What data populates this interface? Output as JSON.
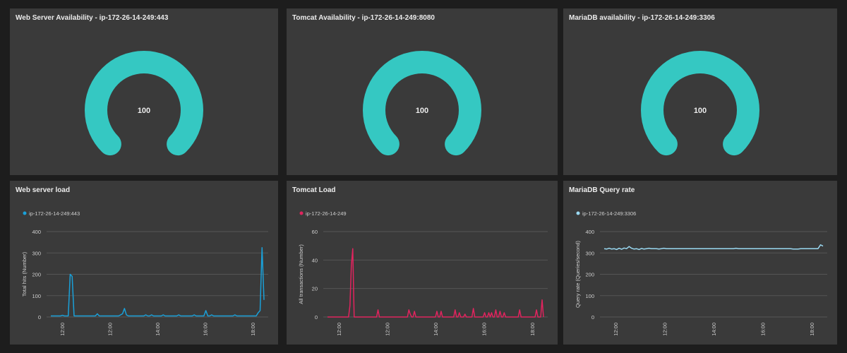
{
  "panels": [
    {
      "title": "Web Server Availability - ip-172-26-14-249:443",
      "value": "100",
      "color": "#35c8c2"
    },
    {
      "title": "Tomcat Availability - ip-172-26-14-249:8080",
      "value": "100",
      "color": "#35c8c2"
    },
    {
      "title": "MariaDB availability - ip-172-26-14-249:3306",
      "value": "100",
      "color": "#35c8c2"
    },
    {
      "title": "Web server load"
    },
    {
      "title": "Tomcat Load"
    },
    {
      "title": "MariaDB Query rate"
    }
  ],
  "chart_data": [
    {
      "type": "gauge",
      "title": "Web Server Availability - ip-172-26-14-249:443",
      "value": 100,
      "range": [
        0,
        100
      ],
      "color": "#35c8c2"
    },
    {
      "type": "gauge",
      "title": "Tomcat Availability - ip-172-26-14-249:8080",
      "value": 100,
      "range": [
        0,
        100
      ],
      "color": "#35c8c2"
    },
    {
      "type": "gauge",
      "title": "MariaDB availability - ip-172-26-14-249:3306",
      "value": 100,
      "range": [
        0,
        100
      ],
      "color": "#35c8c2"
    },
    {
      "type": "line",
      "title": "Web server load",
      "ylabel": "Total hits (Number)",
      "ylim": [
        0,
        400
      ],
      "yticks": [
        "0",
        "100",
        "200",
        "300",
        "400"
      ],
      "xticks": [
        "12:00",
        "12:00",
        "14:00",
        "16:00",
        "18:00"
      ],
      "legend_position": "top-left",
      "grid": true,
      "series": [
        {
          "name": "ip-172-26-14-249:443",
          "color": "#1aa0d8",
          "values": [
            5,
            5,
            5,
            5,
            5,
            5,
            8,
            5,
            5,
            5,
            200,
            190,
            5,
            5,
            5,
            5,
            5,
            5,
            5,
            5,
            5,
            5,
            5,
            5,
            15,
            5,
            5,
            5,
            5,
            5,
            5,
            5,
            5,
            5,
            5,
            5,
            10,
            15,
            40,
            10,
            5,
            5,
            5,
            5,
            5,
            5,
            5,
            5,
            5,
            10,
            5,
            5,
            10,
            5,
            5,
            5,
            5,
            5,
            10,
            5,
            5,
            5,
            5,
            5,
            5,
            5,
            10,
            5,
            5,
            5,
            5,
            5,
            5,
            5,
            10,
            5,
            5,
            5,
            5,
            5,
            30,
            5,
            5,
            10,
            5,
            5,
            5,
            5,
            5,
            5,
            5,
            5,
            5,
            5,
            5,
            10,
            5,
            5,
            5,
            5,
            5,
            5,
            5,
            5,
            5,
            5,
            5,
            20,
            30,
            325,
            80
          ]
        }
      ]
    },
    {
      "type": "line",
      "title": "Tomcat Load",
      "ylabel": "All transactions (Number)",
      "ylim": [
        0,
        60
      ],
      "yticks": [
        "0",
        "20",
        "40",
        "60"
      ],
      "xticks": [
        "12:00",
        "12:00",
        "14:00",
        "16:00",
        "18:00"
      ],
      "legend_position": "top-left",
      "grid": true,
      "series": [
        {
          "name": "ip-172-26-14-249",
          "color": "#e0245e",
          "values": [
            0,
            0,
            0,
            0,
            0,
            0,
            0,
            0,
            0,
            0,
            0,
            0,
            0,
            0,
            0,
            0,
            8,
            36,
            48,
            0,
            0,
            0,
            0,
            0,
            0,
            0,
            0,
            0,
            0,
            0,
            0,
            0,
            0,
            0,
            0,
            0,
            5,
            0,
            0,
            0,
            0,
            0,
            0,
            0,
            0,
            0,
            0,
            0,
            0,
            0,
            0,
            0,
            0,
            0,
            0,
            0,
            0,
            0,
            5,
            2,
            0,
            0,
            4,
            0,
            0,
            0,
            0,
            0,
            0,
            0,
            0,
            0,
            0,
            0,
            0,
            0,
            0,
            0,
            4,
            0,
            0,
            4,
            0,
            0,
            0,
            0,
            0,
            0,
            0,
            0,
            0,
            5,
            0,
            0,
            3,
            0,
            0,
            0,
            2,
            0,
            0,
            0,
            0,
            0,
            6,
            0,
            0,
            0,
            0,
            0,
            0,
            0,
            3,
            0,
            0,
            3,
            0,
            3,
            0,
            0,
            5,
            0,
            0,
            4,
            0,
            0,
            3,
            0,
            0,
            0,
            0,
            0,
            0,
            0,
            0,
            0,
            0,
            5,
            0,
            0,
            0,
            0,
            0,
            0,
            0,
            0,
            0,
            0,
            0,
            5,
            0,
            0,
            0,
            12,
            0
          ]
        }
      ]
    },
    {
      "type": "line",
      "title": "MariaDB Query rate",
      "ylabel": "Query rate (Queries/second)",
      "ylim": [
        0,
        400
      ],
      "yticks": [
        "0",
        "100",
        "200",
        "300",
        "400"
      ],
      "xticks": [
        "12:00",
        "12:00",
        "14:00",
        "16:00",
        "18:00"
      ],
      "legend_position": "top-left",
      "grid": true,
      "series": [
        {
          "name": "ip-172-26-14-249:3306",
          "color": "#9ad9f2",
          "values": [
            320,
            318,
            322,
            318,
            320,
            316,
            322,
            317,
            323,
            320,
            330,
            322,
            318,
            320,
            316,
            321,
            318,
            320,
            322,
            320,
            320,
            320,
            318,
            320,
            322,
            320,
            320,
            320,
            320,
            320,
            320,
            320,
            320,
            320,
            320,
            320,
            320,
            320,
            320,
            320,
            320,
            320,
            320,
            320,
            320,
            320,
            320,
            320,
            320,
            320,
            320,
            320,
            320,
            322,
            320,
            320,
            320,
            320,
            320,
            320,
            320,
            320,
            320,
            320,
            320,
            320,
            320,
            320,
            320,
            320,
            320,
            320,
            320,
            320,
            320,
            320,
            318,
            318,
            318,
            320,
            320,
            320,
            320,
            320,
            320,
            320,
            320,
            338,
            332
          ]
        }
      ]
    }
  ]
}
